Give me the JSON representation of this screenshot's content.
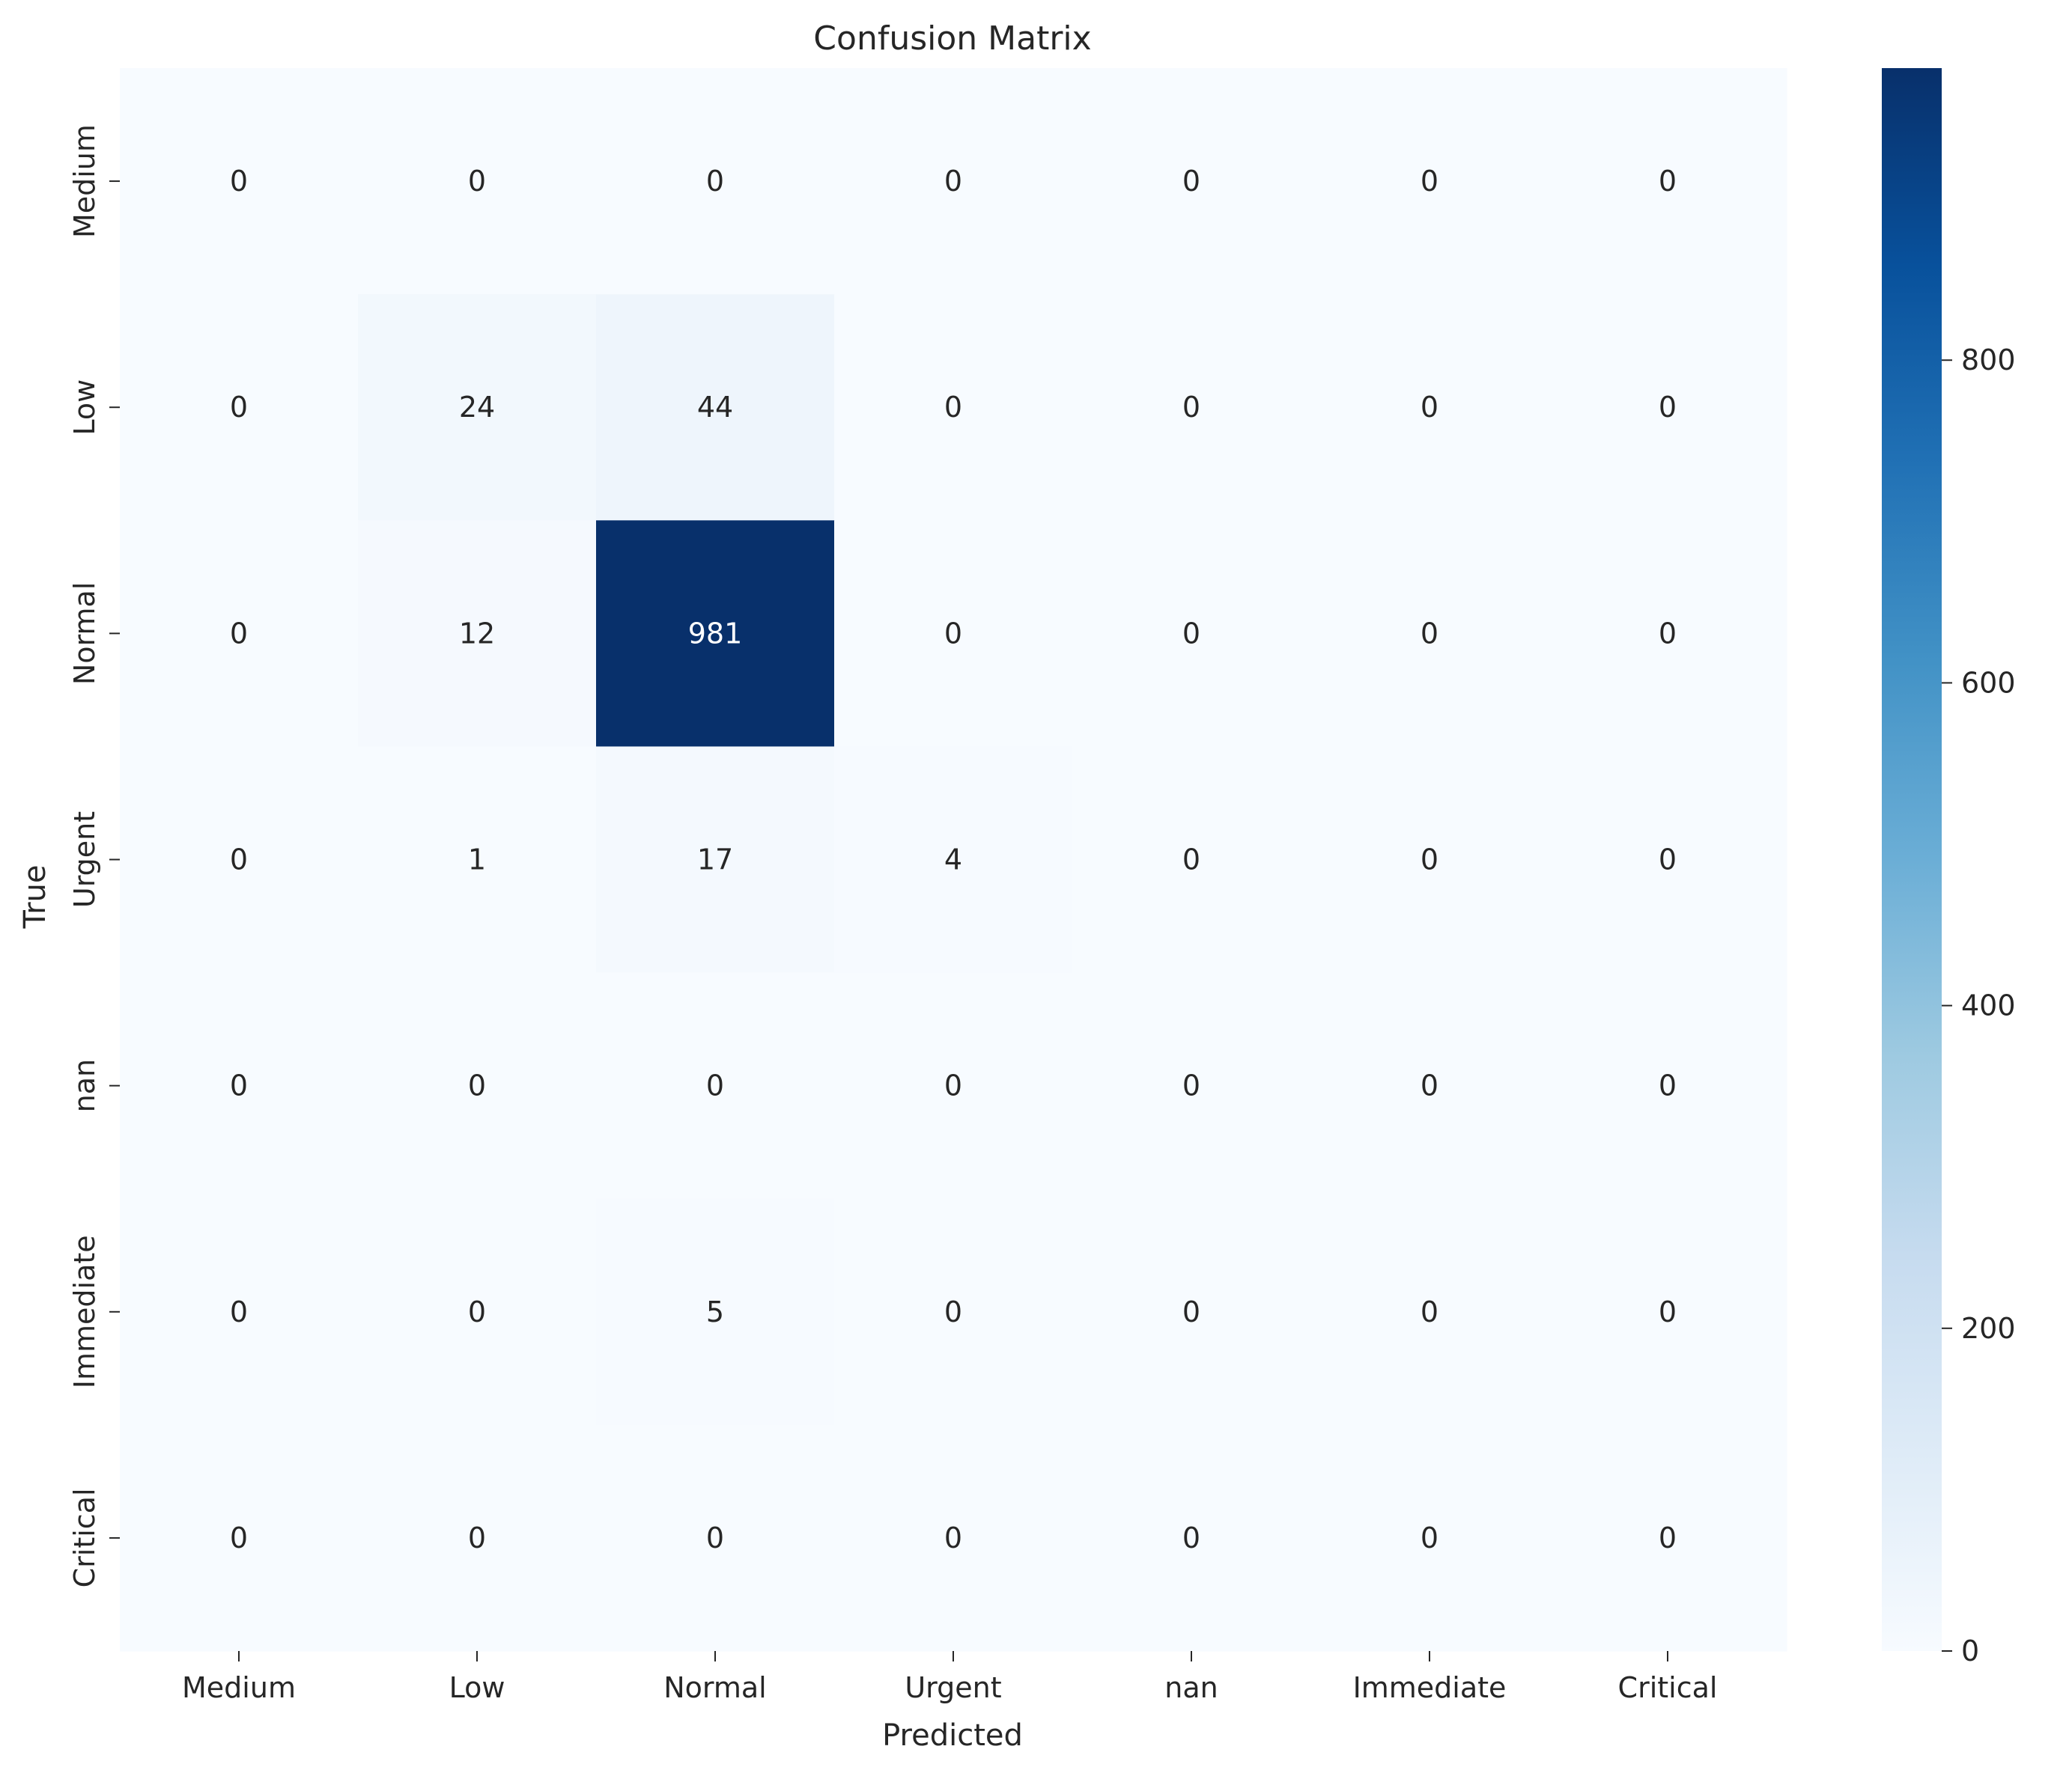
{
  "chart_data": {
    "type": "heatmap",
    "title": "Confusion Matrix",
    "xlabel": "Predicted",
    "ylabel": "True",
    "x_categories": [
      "Medium",
      "Low",
      "Normal",
      "Urgent",
      "nan",
      "Immediate",
      "Critical"
    ],
    "y_categories": [
      "Medium",
      "Low",
      "Normal",
      "Urgent",
      "nan",
      "Immediate",
      "Critical"
    ],
    "matrix": [
      [
        0,
        0,
        0,
        0,
        0,
        0,
        0
      ],
      [
        0,
        24,
        44,
        0,
        0,
        0,
        0
      ],
      [
        0,
        12,
        981,
        0,
        0,
        0,
        0
      ],
      [
        0,
        1,
        17,
        4,
        0,
        0,
        0
      ],
      [
        0,
        0,
        0,
        0,
        0,
        0,
        0
      ],
      [
        0,
        0,
        5,
        0,
        0,
        0,
        0
      ],
      [
        0,
        0,
        0,
        0,
        0,
        0,
        0
      ]
    ],
    "colormap": "Blues",
    "colorbar": {
      "range": [
        0,
        981
      ],
      "ticks": [
        0,
        200,
        400,
        600,
        800
      ]
    },
    "colorbar_stops": [
      "#f7fbff",
      "#deebf7",
      "#c6dbef",
      "#9ecae1",
      "#6baed6",
      "#4292c6",
      "#2171b5",
      "#08519c",
      "#08306b"
    ],
    "label_dark_color": "#262626",
    "label_light_color": "#ffffff"
  }
}
